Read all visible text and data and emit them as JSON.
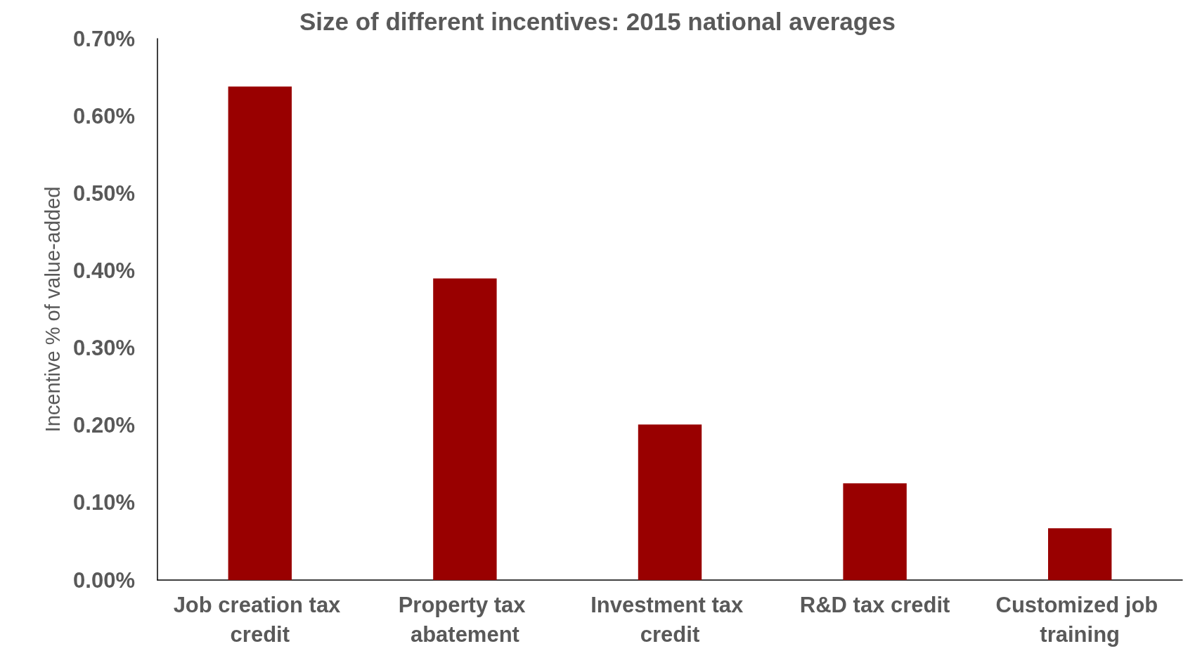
{
  "chart_data": {
    "type": "bar",
    "title": "Size of different incentives: 2015 national averages",
    "ylabel": "Incentive % of value-added",
    "categories": [
      "Job creation tax credit",
      "Property tax abatement",
      "Investment tax credit",
      "R&D tax credit",
      "Customized job training"
    ],
    "values": [
      0.638,
      0.39,
      0.201,
      0.125,
      0.067
    ],
    "color": "#990000",
    "ylim": [
      0,
      0.7
    ],
    "yticks": [
      {
        "value": 0,
        "label": "0.00%"
      },
      {
        "value": 0.1,
        "label": "0.10%"
      },
      {
        "value": 0.2,
        "label": "0.20%"
      },
      {
        "value": 0.3,
        "label": "0.30%"
      },
      {
        "value": 0.4,
        "label": "0.40%"
      },
      {
        "value": 0.5,
        "label": "0.50%"
      },
      {
        "value": 0.6,
        "label": "0.60%"
      },
      {
        "value": 0.7,
        "label": "0.70%"
      }
    ],
    "grid": false
  }
}
